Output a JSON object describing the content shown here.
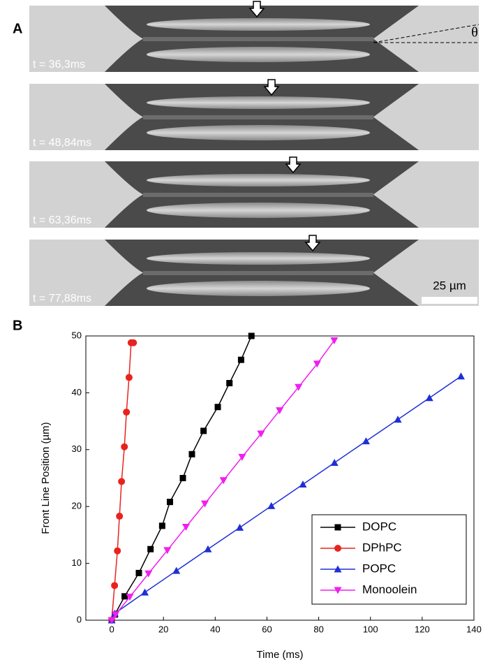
{
  "panel_labels": [
    "A",
    "B"
  ],
  "panel_a": {
    "timestamps": [
      "t = 36,3ms",
      "t = 48,84ms",
      "t = 63,36ms",
      "t = 77,88ms"
    ],
    "angle_label": "θ",
    "scale_bar": "25 µm"
  },
  "chart_data": {
    "type": "line",
    "x_label": "Time (ms)",
    "y_label": "Front Line Position (µm)",
    "xlim": [
      -10,
      140
    ],
    "ylim": [
      0,
      50
    ],
    "xticks": [
      0,
      20,
      40,
      60,
      80,
      100,
      120,
      140
    ],
    "yticks": [
      0,
      10,
      20,
      30,
      40,
      50
    ],
    "legend": "bottom-right",
    "series": [
      {
        "name": "DOPC",
        "color": "#000000",
        "marker": "square",
        "x": [
          0,
          1.2,
          5,
          10.5,
          15,
          19.5,
          22.5,
          27.5,
          31,
          35.5,
          41,
          45.5,
          50,
          54
        ],
        "values": [
          0,
          1,
          4.2,
          8.3,
          12.5,
          16.6,
          20.8,
          25,
          29.2,
          33.3,
          37.5,
          41.7,
          45.8,
          50
        ]
      },
      {
        "name": "DPhPC",
        "color": "#e8231f",
        "marker": "circle",
        "x": [
          0,
          1.1,
          2.2,
          3,
          3.8,
          4.9,
          5.7,
          6.7,
          7.5,
          8.4
        ],
        "values": [
          0,
          6.1,
          12.2,
          18.3,
          24.4,
          30.5,
          36.6,
          42.7,
          48.8,
          48.8
        ]
      },
      {
        "name": "POPC",
        "color": "#1f2fd6",
        "marker": "triangle-up",
        "x": [
          0,
          1.2,
          12.8,
          25,
          37.2,
          49.5,
          61.7,
          73.9,
          86.1,
          98.3,
          110.6,
          122.8,
          135
        ],
        "values": [
          0,
          1.2,
          4.9,
          8.7,
          12.5,
          16.3,
          20.1,
          23.9,
          27.7,
          31.5,
          35.3,
          39.1,
          42.9
        ]
      },
      {
        "name": "Monoolein",
        "color": "#f01ff0",
        "marker": "triangle-down",
        "x": [
          0,
          1.5,
          7,
          14.2,
          21.5,
          28.7,
          36,
          43.2,
          50.4,
          57.7,
          64.9,
          72.2,
          79.4,
          86
        ],
        "values": [
          0,
          1,
          4.1,
          8.2,
          12.3,
          16.4,
          20.5,
          24.6,
          28.7,
          32.8,
          36.9,
          41,
          45.1,
          49.2
        ]
      }
    ]
  }
}
